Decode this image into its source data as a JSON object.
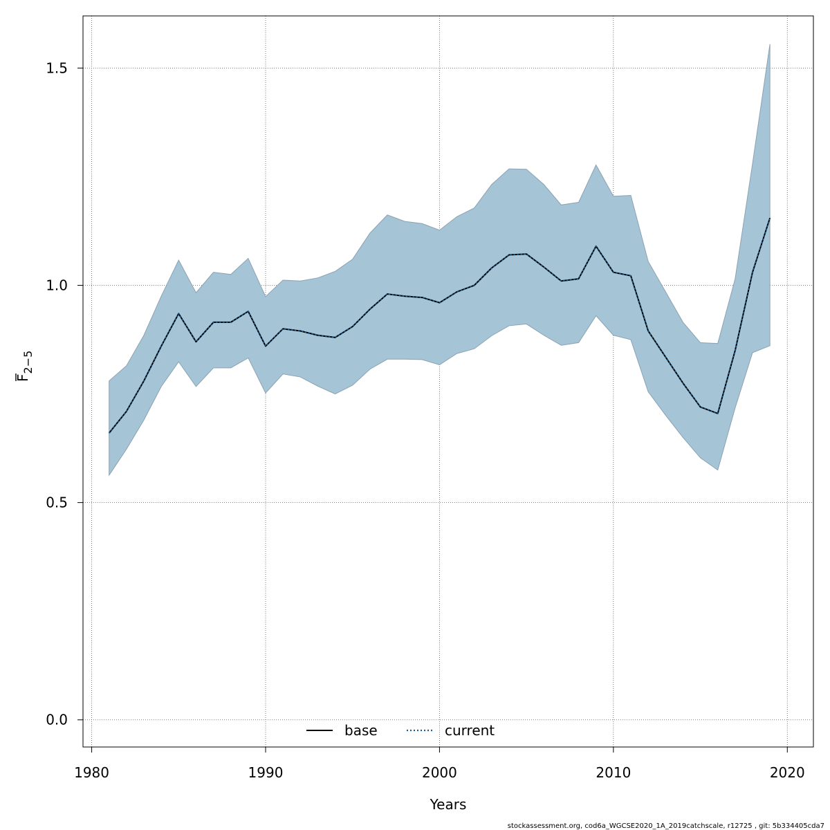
{
  "chart_data": {
    "type": "line",
    "xlabel": "Years",
    "ylabel_main": "F",
    "ylabel_sub": "2−5",
    "xlim": [
      1979.5,
      2021.5
    ],
    "ylim": [
      -0.0625,
      1.62
    ],
    "x_ticks": [
      1980,
      1990,
      2000,
      2010,
      2020
    ],
    "y_ticks": [
      0.0,
      0.5,
      1.0,
      1.5
    ],
    "y_tick_labels": [
      "0.0",
      "0.5",
      "1.0",
      "1.5"
    ],
    "grid": true,
    "legend_position": "bottom",
    "years": [
      1981,
      1982,
      1983,
      1984,
      1985,
      1986,
      1987,
      1988,
      1989,
      1990,
      1991,
      1992,
      1993,
      1994,
      1995,
      1996,
      1997,
      1998,
      1999,
      2000,
      2001,
      2002,
      2003,
      2004,
      2005,
      2006,
      2007,
      2008,
      2009,
      2010,
      2011,
      2012,
      2013,
      2014,
      2015,
      2016,
      2017,
      2018,
      2019
    ],
    "series": [
      {
        "name": "base",
        "line_style": "solid",
        "color": "#000000",
        "values": [
          0.66,
          0.71,
          0.78,
          0.86,
          0.935,
          0.87,
          0.915,
          0.915,
          0.94,
          0.86,
          0.9,
          0.895,
          0.885,
          0.88,
          0.905,
          0.945,
          0.98,
          0.975,
          0.972,
          0.96,
          0.985,
          1.0,
          1.04,
          1.07,
          1.072,
          1.042,
          1.01,
          1.015,
          1.09,
          1.03,
          1.022,
          0.895,
          0.835,
          0.775,
          0.72,
          0.705,
          0.85,
          1.03,
          1.155
        ]
      },
      {
        "name": "current",
        "line_style": "dotted",
        "color": "#1a5d8f",
        "values": [
          0.66,
          0.71,
          0.78,
          0.86,
          0.935,
          0.87,
          0.915,
          0.915,
          0.94,
          0.86,
          0.9,
          0.895,
          0.885,
          0.88,
          0.905,
          0.945,
          0.98,
          0.975,
          0.972,
          0.96,
          0.985,
          1.0,
          1.04,
          1.07,
          1.072,
          1.042,
          1.01,
          1.015,
          1.09,
          1.03,
          1.022,
          0.895,
          0.835,
          0.775,
          0.72,
          0.705,
          0.85,
          1.03,
          1.155
        ]
      }
    ],
    "confidence_band": {
      "upper": [
        0.78,
        0.815,
        0.885,
        0.975,
        1.058,
        0.983,
        1.03,
        1.025,
        1.062,
        0.974,
        1.012,
        1.01,
        1.017,
        1.032,
        1.06,
        1.12,
        1.162,
        1.147,
        1.142,
        1.127,
        1.158,
        1.178,
        1.232,
        1.268,
        1.267,
        1.232,
        1.185,
        1.191,
        1.277,
        1.205,
        1.207,
        1.055,
        0.985,
        0.915,
        0.868,
        0.866,
        1.015,
        1.28,
        1.555
      ],
      "lower": [
        0.563,
        0.623,
        0.69,
        0.767,
        0.824,
        0.767,
        0.81,
        0.81,
        0.833,
        0.752,
        0.796,
        0.789,
        0.768,
        0.75,
        0.77,
        0.807,
        0.83,
        0.83,
        0.829,
        0.817,
        0.843,
        0.854,
        0.884,
        0.907,
        0.911,
        0.885,
        0.862,
        0.868,
        0.93,
        0.885,
        0.875,
        0.755,
        0.701,
        0.65,
        0.603,
        0.575,
        0.718,
        0.845,
        0.861
      ],
      "fill_color": "#a5c4d6",
      "stroke_color": "#8ba2b3"
    }
  },
  "footer_text": "stockassessment.org, cod6a_WGCSE2020_1A_2019catchscale, r12725 , git: 5b334405cda7"
}
